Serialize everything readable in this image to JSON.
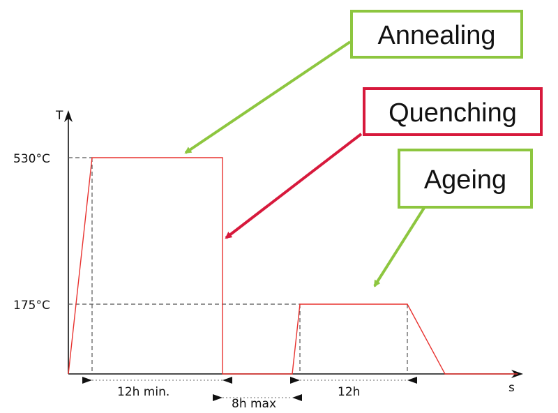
{
  "axes": {
    "y_label": "T",
    "x_label": "s"
  },
  "levels": {
    "high": "530°C",
    "low": "175°C"
  },
  "callouts": {
    "annealing": {
      "label": "Annealing",
      "color": "#8dc63f"
    },
    "quenching": {
      "label": "Quenching",
      "color": "#d7193c"
    },
    "ageing": {
      "label": "Ageing",
      "color": "#8dc63f"
    }
  },
  "dimensions": {
    "anneal_time": "12h min.",
    "gap_time": "8h max",
    "ageing_time": "12h"
  },
  "colors": {
    "profile": "#e8322f",
    "axis": "#111111",
    "guide": "#555555"
  }
}
